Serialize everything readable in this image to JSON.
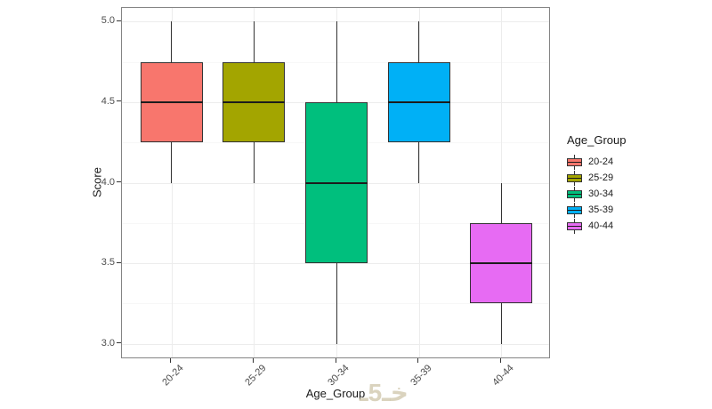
{
  "chart_data": {
    "type": "boxplot",
    "title": "",
    "xlabel": "Age_Group",
    "ylabel": "Score",
    "categories": [
      "20-24",
      "25-29",
      "30-34",
      "35-39",
      "40-44"
    ],
    "y_ticks": [
      3.0,
      3.5,
      4.0,
      4.5,
      5.0
    ],
    "y_minor_ticks": [
      3.25,
      3.75,
      4.25,
      4.75
    ],
    "ylim": [
      2.905,
      5.085
    ],
    "grid": true,
    "legend": {
      "title": "Age_Group",
      "position": "right"
    },
    "series": [
      {
        "name": "20-24",
        "color": "#F8766D",
        "whisker_low": 4.0,
        "q1": 4.25,
        "median": 4.5,
        "q3": 4.75,
        "whisker_high": 5.0
      },
      {
        "name": "25-29",
        "color": "#A3A500",
        "whisker_low": 4.0,
        "q1": 4.25,
        "median": 4.5,
        "q3": 4.75,
        "whisker_high": 5.0
      },
      {
        "name": "30-34",
        "color": "#00BF7D",
        "whisker_low": 3.0,
        "q1": 3.5,
        "median": 4.0,
        "q3": 4.5,
        "whisker_high": 5.0
      },
      {
        "name": "35-39",
        "color": "#00B0F6",
        "whisker_low": 4.0,
        "q1": 4.25,
        "median": 4.5,
        "q3": 4.75,
        "whisker_high": 5.0
      },
      {
        "name": "40-44",
        "color": "#E76BF3",
        "whisker_low": 3.0,
        "q1": 3.25,
        "median": 3.5,
        "q3": 3.75,
        "whisker_high": 4.0
      }
    ],
    "theme": {
      "box_border": "#333333",
      "median_color": "#1c1c1c",
      "whisker_color": "#333333",
      "panel_border": "#848484",
      "grid_major": "#ececec",
      "grid_minor": "#f7f7f7",
      "tick_color": "#333333",
      "tick_label_color": "#4d4d4d",
      "title_color": "#1a1a1a"
    }
  },
  "watermark": {
    "text": "خـ5ـ",
    "color": "rgba(205,196,168,0.75)"
  }
}
